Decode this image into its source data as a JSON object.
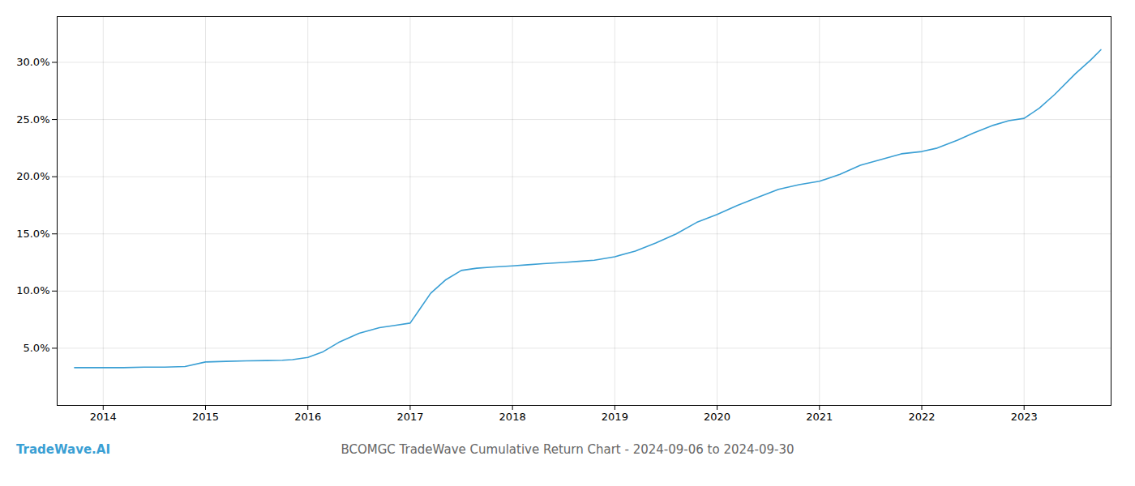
{
  "chart_data": {
    "type": "line",
    "title": "BCOMGC TradeWave Cumulative Return Chart - 2024-09-06 to 2024-09-30",
    "annotations": [
      {
        "text": "TradeWave.AI"
      }
    ],
    "color": "#3a9fd4",
    "grid": true,
    "x": [
      2013.72,
      2013.85,
      2014.0,
      2014.2,
      2014.4,
      2014.6,
      2014.8,
      2015.0,
      2015.2,
      2015.4,
      2015.6,
      2015.75,
      2015.85,
      2016.0,
      2016.15,
      2016.3,
      2016.5,
      2016.7,
      2016.85,
      2017.0,
      2017.1,
      2017.2,
      2017.35,
      2017.5,
      2017.65,
      2017.8,
      2018.0,
      2018.15,
      2018.3,
      2018.5,
      2018.65,
      2018.8,
      2019.0,
      2019.2,
      2019.4,
      2019.6,
      2019.8,
      2020.0,
      2020.2,
      2020.4,
      2020.6,
      2020.8,
      2021.0,
      2021.2,
      2021.4,
      2021.6,
      2021.8,
      2022.0,
      2022.15,
      2022.35,
      2022.5,
      2022.7,
      2022.85,
      2023.0,
      2023.15,
      2023.3,
      2023.5,
      2023.65,
      2023.75
    ],
    "values": [
      3.3,
      3.3,
      3.3,
      3.3,
      3.35,
      3.35,
      3.4,
      3.8,
      3.85,
      3.9,
      3.92,
      3.95,
      4.0,
      4.2,
      4.7,
      5.5,
      6.3,
      6.8,
      7.0,
      7.2,
      8.5,
      9.8,
      11.0,
      11.8,
      12.0,
      12.1,
      12.2,
      12.3,
      12.4,
      12.5,
      12.6,
      12.7,
      13.0,
      13.5,
      14.2,
      15.0,
      16.0,
      16.7,
      17.5,
      18.2,
      18.9,
      19.3,
      19.6,
      20.2,
      21.0,
      21.5,
      22.0,
      22.2,
      22.5,
      23.2,
      23.8,
      24.5,
      24.9,
      25.1,
      26.0,
      27.2,
      29.0,
      30.2,
      31.1
    ],
    "xlim": [
      2013.55,
      2023.85
    ],
    "xticks": [
      2014,
      2015,
      2016,
      2017,
      2018,
      2019,
      2020,
      2021,
      2022,
      2023
    ],
    "ylim": [
      0,
      34
    ],
    "yticks": [
      {
        "value": 5.0,
        "label": "5.0%"
      },
      {
        "value": 10.0,
        "label": "10.0%"
      },
      {
        "value": 15.0,
        "label": "15.0%"
      },
      {
        "value": 20.0,
        "label": "20.0%"
      },
      {
        "value": 25.0,
        "label": "25.0%"
      },
      {
        "value": 30.0,
        "label": "30.0%"
      }
    ]
  }
}
